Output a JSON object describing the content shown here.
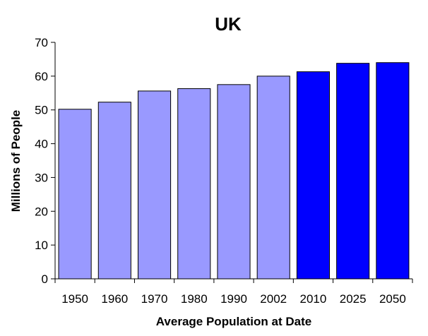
{
  "chart_data": {
    "type": "bar",
    "title": "UK",
    "xlabel": "Average Population at Date",
    "ylabel": "Millions of People",
    "categories": [
      "1950",
      "1960",
      "1970",
      "1980",
      "1990",
      "2002",
      "2010",
      "2025",
      "2050"
    ],
    "values": [
      50.2,
      52.3,
      55.6,
      56.3,
      57.5,
      60.0,
      61.3,
      63.8,
      64.0
    ],
    "bar_colors": [
      "#9999ff",
      "#9999ff",
      "#9999ff",
      "#9999ff",
      "#9999ff",
      "#9999ff",
      "#0000ff",
      "#0000ff",
      "#0000ff"
    ],
    "ylim": [
      0,
      70
    ],
    "yticks": [
      0,
      10,
      20,
      30,
      40,
      50,
      60,
      70
    ],
    "grid": false,
    "legend": "none"
  }
}
